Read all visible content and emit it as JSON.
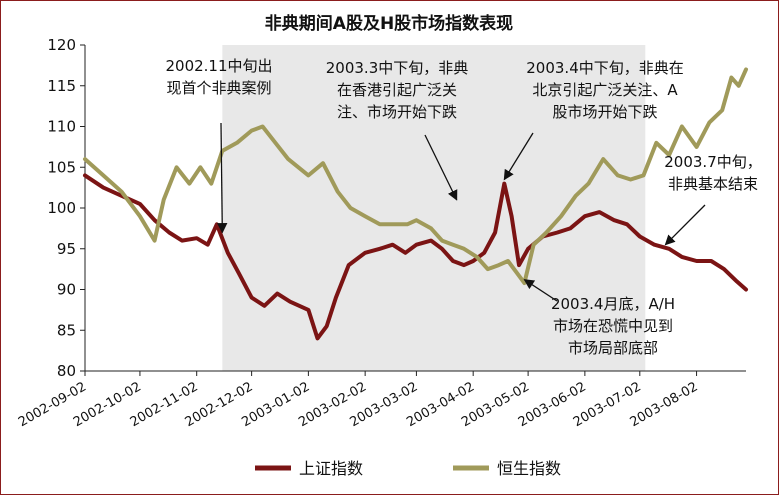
{
  "chart_data": {
    "type": "line",
    "title": "非典期间A股及H股市场指数表现",
    "xlabel": "",
    "ylabel": "",
    "ylim": [
      80,
      120
    ],
    "yticks": [
      80,
      85,
      90,
      95,
      100,
      105,
      110,
      115,
      120
    ],
    "x_tick_labels": [
      "2002-09-02",
      "2002-10-02",
      "2002-11-02",
      "2002-12-02",
      "2003-01-02",
      "2003-02-02",
      "2003-03-02",
      "2003-04-02",
      "2003-05-02",
      "2003-06-02",
      "2003-07-02",
      "2003-08-02"
    ],
    "x_range": [
      "2002-09-02",
      "2003-08-29"
    ],
    "shaded_period": [
      "2002-11-16",
      "2003-07-05"
    ],
    "legend_position": "bottom",
    "grid": false,
    "series": [
      {
        "name": "上证指数",
        "color": "#7b1414",
        "points": [
          [
            "2002-09-02",
            104.0
          ],
          [
            "2002-09-12",
            102.5
          ],
          [
            "2002-09-22",
            101.5
          ],
          [
            "2002-10-02",
            100.5
          ],
          [
            "2002-10-10",
            98.5
          ],
          [
            "2002-10-18",
            97.0
          ],
          [
            "2002-10-25",
            96.0
          ],
          [
            "2002-11-02",
            96.3
          ],
          [
            "2002-11-08",
            95.5
          ],
          [
            "2002-11-13",
            98.0
          ],
          [
            "2002-11-19",
            94.5
          ],
          [
            "2002-11-25",
            92.0
          ],
          [
            "2002-12-02",
            89.0
          ],
          [
            "2002-12-09",
            88.0
          ],
          [
            "2002-12-16",
            89.5
          ],
          [
            "2002-12-23",
            88.5
          ],
          [
            "2003-01-02",
            87.5
          ],
          [
            "2003-01-07",
            84.0
          ],
          [
            "2003-01-12",
            85.5
          ],
          [
            "2003-01-17",
            89.0
          ],
          [
            "2003-01-24",
            93.0
          ],
          [
            "2003-02-02",
            94.5
          ],
          [
            "2003-02-10",
            95.0
          ],
          [
            "2003-02-17",
            95.5
          ],
          [
            "2003-02-24",
            94.5
          ],
          [
            "2003-03-02",
            95.5
          ],
          [
            "2003-03-10",
            96.0
          ],
          [
            "2003-03-16",
            95.0
          ],
          [
            "2003-03-22",
            93.5
          ],
          [
            "2003-03-28",
            93.0
          ],
          [
            "2003-04-02",
            93.5
          ],
          [
            "2003-04-08",
            94.5
          ],
          [
            "2003-04-14",
            97.0
          ],
          [
            "2003-04-19",
            103.0
          ],
          [
            "2003-04-23",
            99.0
          ],
          [
            "2003-04-27",
            93.0
          ],
          [
            "2003-05-02",
            95.0
          ],
          [
            "2003-05-10",
            96.5
          ],
          [
            "2003-05-18",
            97.0
          ],
          [
            "2003-05-25",
            97.5
          ],
          [
            "2003-06-02",
            99.0
          ],
          [
            "2003-06-10",
            99.5
          ],
          [
            "2003-06-18",
            98.5
          ],
          [
            "2003-06-25",
            98.0
          ],
          [
            "2003-07-02",
            96.5
          ],
          [
            "2003-07-10",
            95.5
          ],
          [
            "2003-07-18",
            95.0
          ],
          [
            "2003-07-25",
            94.0
          ],
          [
            "2003-08-02",
            93.5
          ],
          [
            "2003-08-10",
            93.5
          ],
          [
            "2003-08-17",
            92.5
          ],
          [
            "2003-08-24",
            91.0
          ],
          [
            "2003-08-29",
            90.0
          ]
        ]
      },
      {
        "name": "恒生指数",
        "color": "#a09a5a",
        "points": [
          [
            "2002-09-02",
            106.0
          ],
          [
            "2002-09-12",
            104.0
          ],
          [
            "2002-09-22",
            102.0
          ],
          [
            "2002-10-02",
            99.0
          ],
          [
            "2002-10-10",
            96.0
          ],
          [
            "2002-10-15",
            101.0
          ],
          [
            "2002-10-22",
            105.0
          ],
          [
            "2002-10-29",
            103.0
          ],
          [
            "2002-11-04",
            105.0
          ],
          [
            "2002-11-10",
            103.0
          ],
          [
            "2002-11-16",
            107.0
          ],
          [
            "2002-11-24",
            108.0
          ],
          [
            "2002-12-02",
            109.5
          ],
          [
            "2002-12-08",
            110.0
          ],
          [
            "2002-12-15",
            108.0
          ],
          [
            "2002-12-22",
            106.0
          ],
          [
            "2003-01-02",
            104.0
          ],
          [
            "2003-01-10",
            105.5
          ],
          [
            "2003-01-18",
            102.0
          ],
          [
            "2003-01-25",
            100.0
          ],
          [
            "2003-02-02",
            99.0
          ],
          [
            "2003-02-10",
            98.0
          ],
          [
            "2003-02-18",
            98.0
          ],
          [
            "2003-02-25",
            98.0
          ],
          [
            "2003-03-02",
            98.5
          ],
          [
            "2003-03-10",
            97.5
          ],
          [
            "2003-03-16",
            96.0
          ],
          [
            "2003-03-22",
            95.5
          ],
          [
            "2003-03-28",
            95.0
          ],
          [
            "2003-04-04",
            94.0
          ],
          [
            "2003-04-10",
            92.5
          ],
          [
            "2003-04-16",
            93.0
          ],
          [
            "2003-04-21",
            93.5
          ],
          [
            "2003-04-26",
            92.0
          ],
          [
            "2003-04-30",
            90.8
          ],
          [
            "2003-05-05",
            95.5
          ],
          [
            "2003-05-12",
            97.0
          ],
          [
            "2003-05-20",
            99.0
          ],
          [
            "2003-05-28",
            101.5
          ],
          [
            "2003-06-04",
            103.0
          ],
          [
            "2003-06-12",
            106.0
          ],
          [
            "2003-06-20",
            104.0
          ],
          [
            "2003-06-27",
            103.5
          ],
          [
            "2003-07-04",
            104.0
          ],
          [
            "2003-07-11",
            108.0
          ],
          [
            "2003-07-18",
            106.5
          ],
          [
            "2003-07-25",
            110.0
          ],
          [
            "2003-08-02",
            107.5
          ],
          [
            "2003-08-09",
            110.5
          ],
          [
            "2003-08-16",
            112.0
          ],
          [
            "2003-08-21",
            116.0
          ],
          [
            "2003-08-25",
            115.0
          ],
          [
            "2003-08-29",
            117.0
          ]
        ]
      }
    ],
    "annotations": [
      {
        "lines": [
          "2002.11中旬出",
          "现首个非典案例"
        ],
        "target": [
          "2002-11-16",
          97
        ]
      },
      {
        "lines": [
          "2003.3中下旬，非典",
          "在香港引起广泛关",
          "注、市场开始下跌"
        ],
        "target": [
          "2003-03-24",
          101
        ]
      },
      {
        "lines": [
          "2003.4中下旬，非典在",
          "北京引起广泛关注、A",
          "股市场开始下跌"
        ],
        "target": [
          "2003-04-19",
          103.5
        ]
      },
      {
        "lines": [
          "2003.4月底，A/H",
          "市场在恐慌中见到",
          "市场局部底部"
        ],
        "target": [
          "2003-04-30",
          91.2
        ]
      },
      {
        "lines": [
          "2003.7中旬，",
          "非典基本结束"
        ],
        "target": [
          "2003-07-16",
          95.5
        ]
      }
    ]
  }
}
